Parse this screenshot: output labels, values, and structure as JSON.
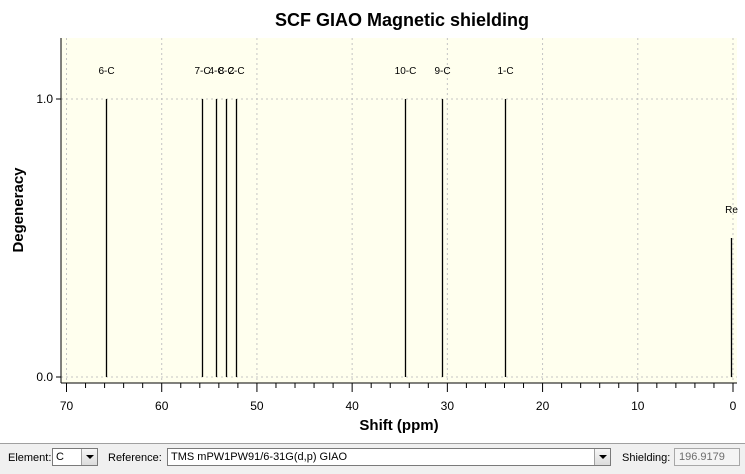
{
  "chart_data": {
    "type": "stick",
    "title": "SCF GIAO Magnetic shielding",
    "xlabel": "Shift (ppm)",
    "ylabel": "Degeneracy",
    "xlim": [
      71,
      0
    ],
    "ylim": [
      0,
      1.0
    ],
    "x_ticks": [
      70,
      60,
      50,
      40,
      30,
      20,
      10,
      0
    ],
    "y_ticks": [
      "1.0",
      "0.0"
    ],
    "grid": true,
    "peaks": [
      {
        "label": "6-C",
        "x": 65.8,
        "y": 1.0
      },
      {
        "label": "7-C",
        "x": 55.8,
        "y": 1.0
      },
      {
        "label": "4-C",
        "x": 54.3,
        "y": 1.0
      },
      {
        "label": "8-C",
        "x": 53.3,
        "y": 1.0
      },
      {
        "label": "2-C",
        "x": 52.2,
        "y": 1.0
      },
      {
        "label": "10-C",
        "x": 34.5,
        "y": 1.0
      },
      {
        "label": "9-C",
        "x": 30.6,
        "y": 1.0
      },
      {
        "label": "1-C",
        "x": 23.9,
        "y": 1.0
      },
      {
        "label": "Re",
        "x": 0.2,
        "y": 0.5
      }
    ],
    "line_color": "#000000",
    "plot_background": "#ffffee"
  },
  "controls": {
    "element_label": "Element:",
    "element_value": "C",
    "reference_label": "Reference:",
    "reference_value": "TMS mPW1PW91/6-31G(d,p) GIAO",
    "shielding_label": "Shielding:",
    "shielding_value": "196.9179"
  }
}
